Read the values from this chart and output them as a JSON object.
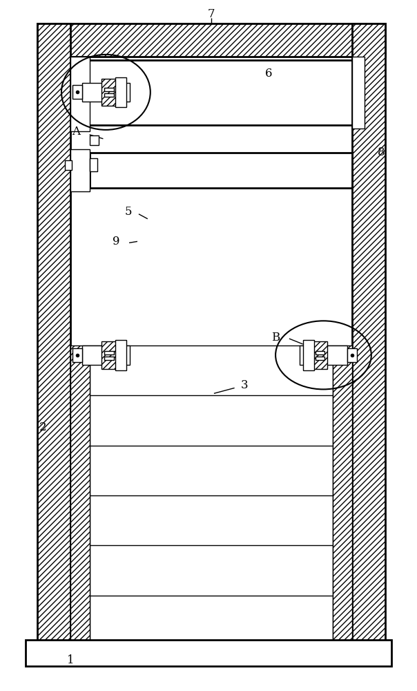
{
  "background_color": "#ffffff",
  "line_color": "#000000",
  "fig_width": 6.04,
  "fig_height": 10.0,
  "dpi": 100
}
